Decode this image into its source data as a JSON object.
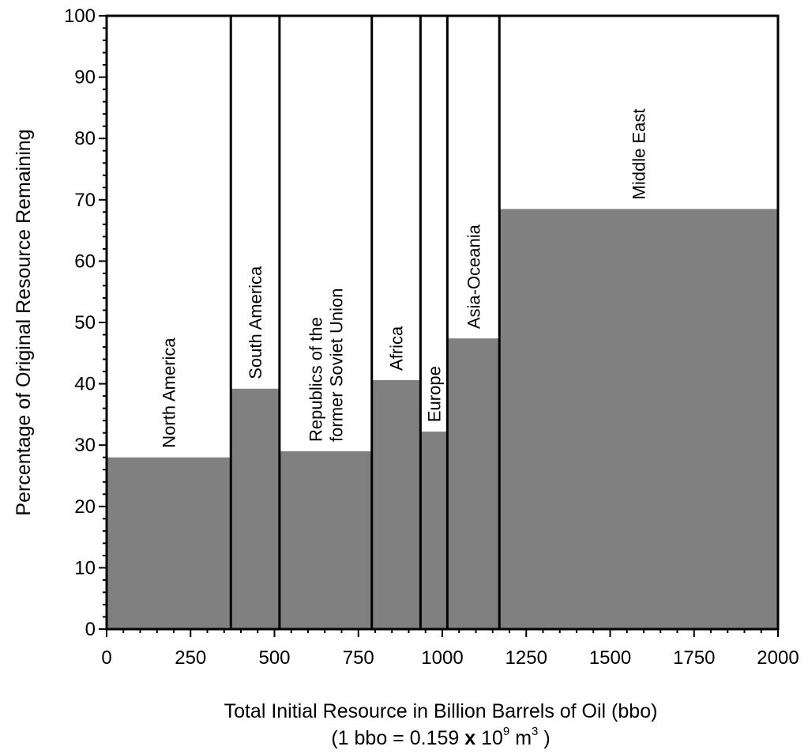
{
  "chart_data": {
    "type": "bar",
    "subtype": "variable-width bar (marimekko)",
    "title": "",
    "xlabel": "Total Initial Resource in Billion Barrels of Oil (bbo)",
    "xlabel_note": {
      "prefix": "(1 bbo = 0.159 ",
      "times": "x",
      "base": " 10",
      "exp1": "9",
      "unit": " m",
      "exp2": "3",
      "suffix": " )"
    },
    "ylabel": "Percentage of Original Resource Remaining",
    "xlim": [
      0,
      2000
    ],
    "ylim": [
      0,
      100
    ],
    "x_ticks": [
      "0",
      "250",
      "500",
      "750",
      "1000",
      "1250",
      "1500",
      "1750",
      "2000"
    ],
    "y_ticks": [
      "0",
      "10",
      "20",
      "30",
      "40",
      "50",
      "60",
      "70",
      "80",
      "90",
      "100"
    ],
    "bar_color": "#808080",
    "bars": [
      {
        "label": "North America",
        "x_start": 0,
        "x_end": 370,
        "value": 28
      },
      {
        "label": "South America",
        "x_start": 370,
        "x_end": 515,
        "value": 39.2
      },
      {
        "label": [
          "Republics of the",
          "former Soviet Union"
        ],
        "x_start": 515,
        "x_end": 790,
        "value": 29
      },
      {
        "label": "Africa",
        "x_start": 790,
        "x_end": 935,
        "value": 40.6
      },
      {
        "label": "Europe",
        "x_start": 935,
        "x_end": 1015,
        "value": 32.2
      },
      {
        "label": "Asia-Oceania",
        "x_start": 1015,
        "x_end": 1170,
        "value": 47.4
      },
      {
        "label": "Middle East",
        "x_start": 1170,
        "x_end": 2000,
        "value": 68.5
      }
    ]
  }
}
